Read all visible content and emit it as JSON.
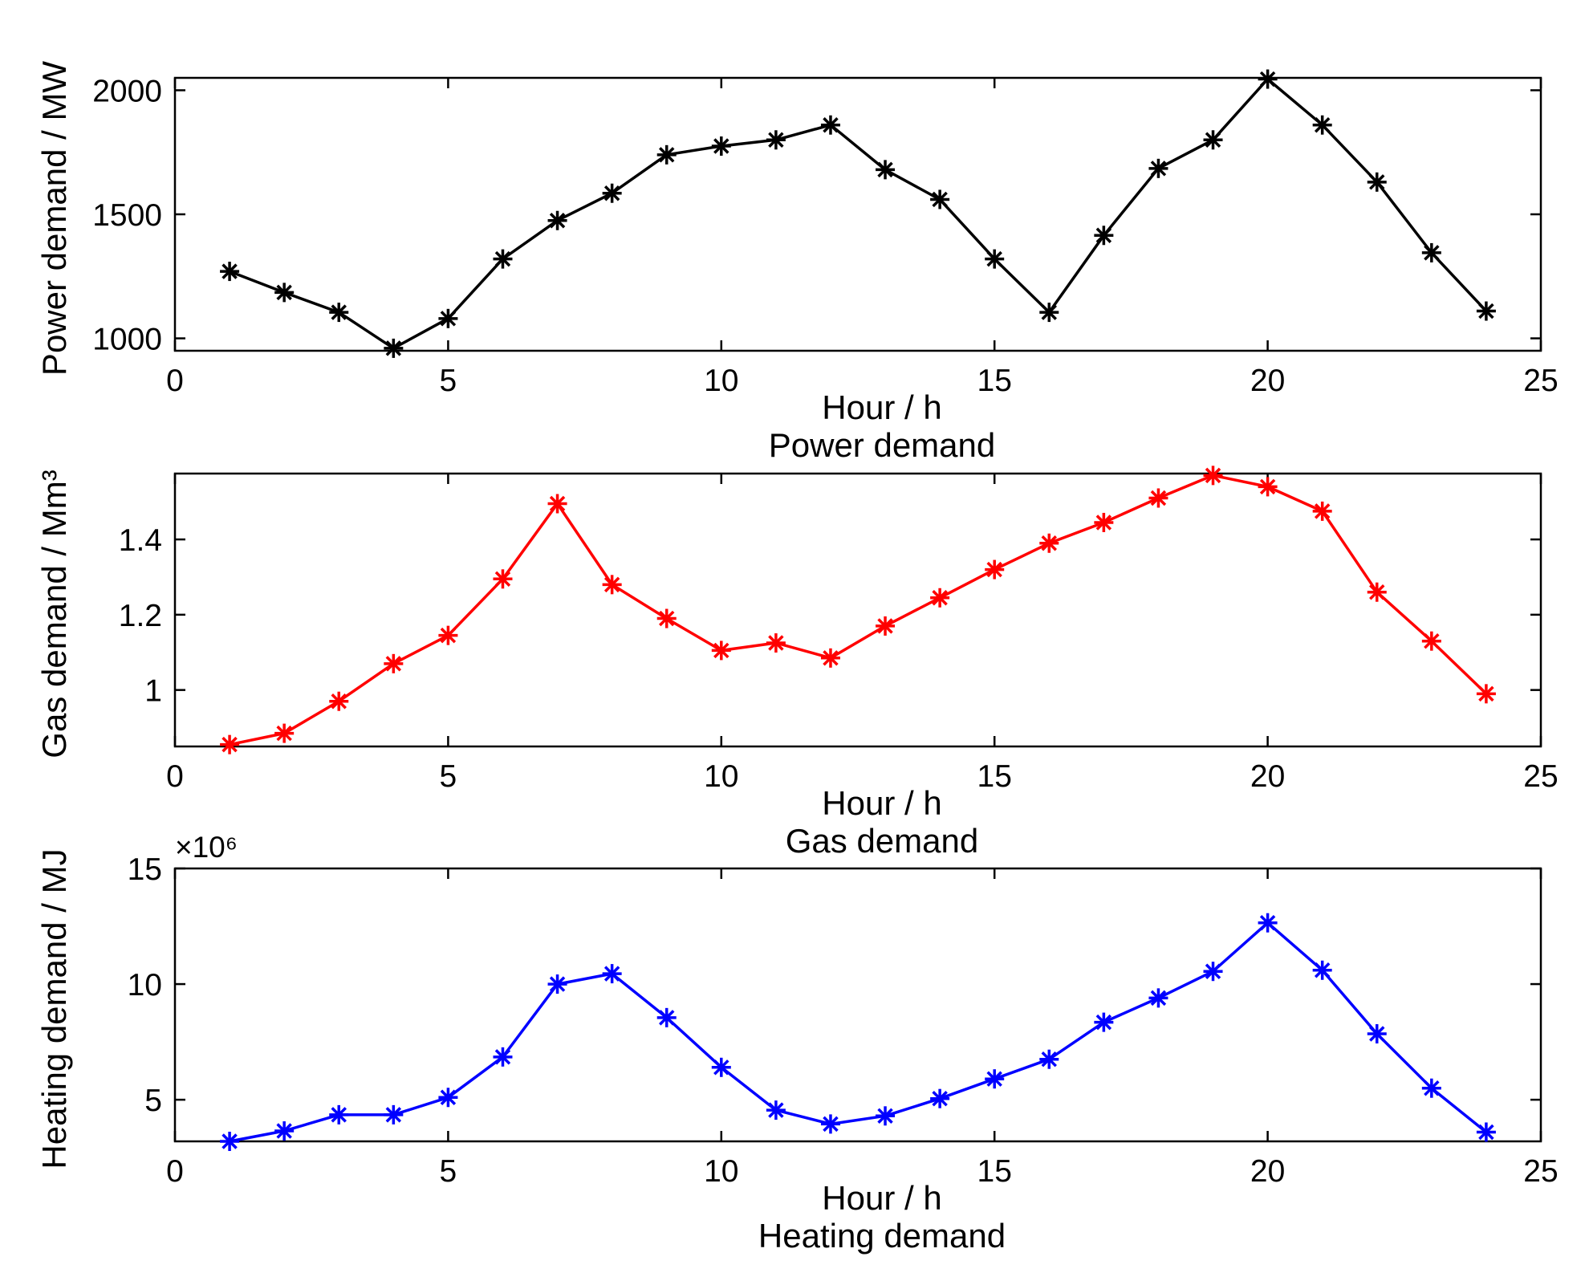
{
  "chart_data": [
    {
      "type": "line",
      "title": "Power demand",
      "xlabel": "Hour / h",
      "ylabel": "Power demand / MW",
      "xlim": [
        0,
        25
      ],
      "ylim": [
        950,
        2050
      ],
      "xticks": [
        0,
        5,
        10,
        15,
        20,
        25
      ],
      "xtick_labels": [
        "0",
        "5",
        "10",
        "15",
        "20",
        "25"
      ],
      "yticks": [
        1000,
        1500,
        2000
      ],
      "ytick_labels": [
        "1000",
        "1500",
        "2000"
      ],
      "multiplier_label": "",
      "color": "#000000",
      "marker": "asterisk",
      "x": [
        1,
        2,
        3,
        4,
        5,
        6,
        7,
        8,
        9,
        10,
        11,
        12,
        13,
        14,
        15,
        16,
        17,
        18,
        19,
        20,
        21,
        22,
        23,
        24
      ],
      "values": [
        1270,
        1185,
        1105,
        960,
        1080,
        1320,
        1475,
        1585,
        1740,
        1775,
        1800,
        1860,
        1680,
        1560,
        1320,
        1105,
        1415,
        1685,
        1800,
        2045,
        1860,
        1630,
        1345,
        1110
      ]
    },
    {
      "type": "line",
      "title": "Gas demand",
      "xlabel": "Hour / h",
      "ylabel": "Gas demand / Mm³",
      "xlim": [
        0,
        25
      ],
      "ylim": [
        0.85,
        1.575
      ],
      "xticks": [
        0,
        5,
        10,
        15,
        20,
        25
      ],
      "xtick_labels": [
        "0",
        "5",
        "10",
        "15",
        "20",
        "25"
      ],
      "yticks": [
        1.0,
        1.2,
        1.4
      ],
      "ytick_labels": [
        "1",
        "1.2",
        "1.4"
      ],
      "multiplier_label": "",
      "color": "#ff0000",
      "marker": "asterisk",
      "x": [
        1,
        2,
        3,
        4,
        5,
        6,
        7,
        8,
        9,
        10,
        11,
        12,
        13,
        14,
        15,
        16,
        17,
        18,
        19,
        20,
        21,
        22,
        23,
        24
      ],
      "values": [
        0.855,
        0.885,
        0.97,
        1.07,
        1.145,
        1.295,
        1.495,
        1.28,
        1.19,
        1.105,
        1.125,
        1.085,
        1.17,
        1.245,
        1.32,
        1.39,
        1.445,
        1.51,
        1.57,
        1.54,
        1.475,
        1.26,
        1.13,
        0.99
      ]
    },
    {
      "type": "line",
      "title": "Heating demand",
      "xlabel": "Hour / h",
      "ylabel": "Heating demand / MJ",
      "xlim": [
        0,
        25
      ],
      "ylim": [
        3.2,
        15
      ],
      "xticks": [
        0,
        5,
        10,
        15,
        20,
        25
      ],
      "xtick_labels": [
        "0",
        "5",
        "10",
        "15",
        "20",
        "25"
      ],
      "yticks": [
        5,
        10,
        15
      ],
      "ytick_labels": [
        "5",
        "10",
        "15"
      ],
      "multiplier_label": "×10⁶",
      "color": "#0000ff",
      "marker": "asterisk",
      "x": [
        1,
        2,
        3,
        4,
        5,
        6,
        7,
        8,
        9,
        10,
        11,
        12,
        13,
        14,
        15,
        16,
        17,
        18,
        19,
        20,
        21,
        22,
        23,
        24
      ],
      "values": [
        3.2,
        3.65,
        4.35,
        4.35,
        5.1,
        6.85,
        10.0,
        10.45,
        8.55,
        6.4,
        4.55,
        3.95,
        4.3,
        5.05,
        5.9,
        6.75,
        8.35,
        9.4,
        10.55,
        12.65,
        10.6,
        7.85,
        5.5,
        3.6
      ]
    }
  ]
}
